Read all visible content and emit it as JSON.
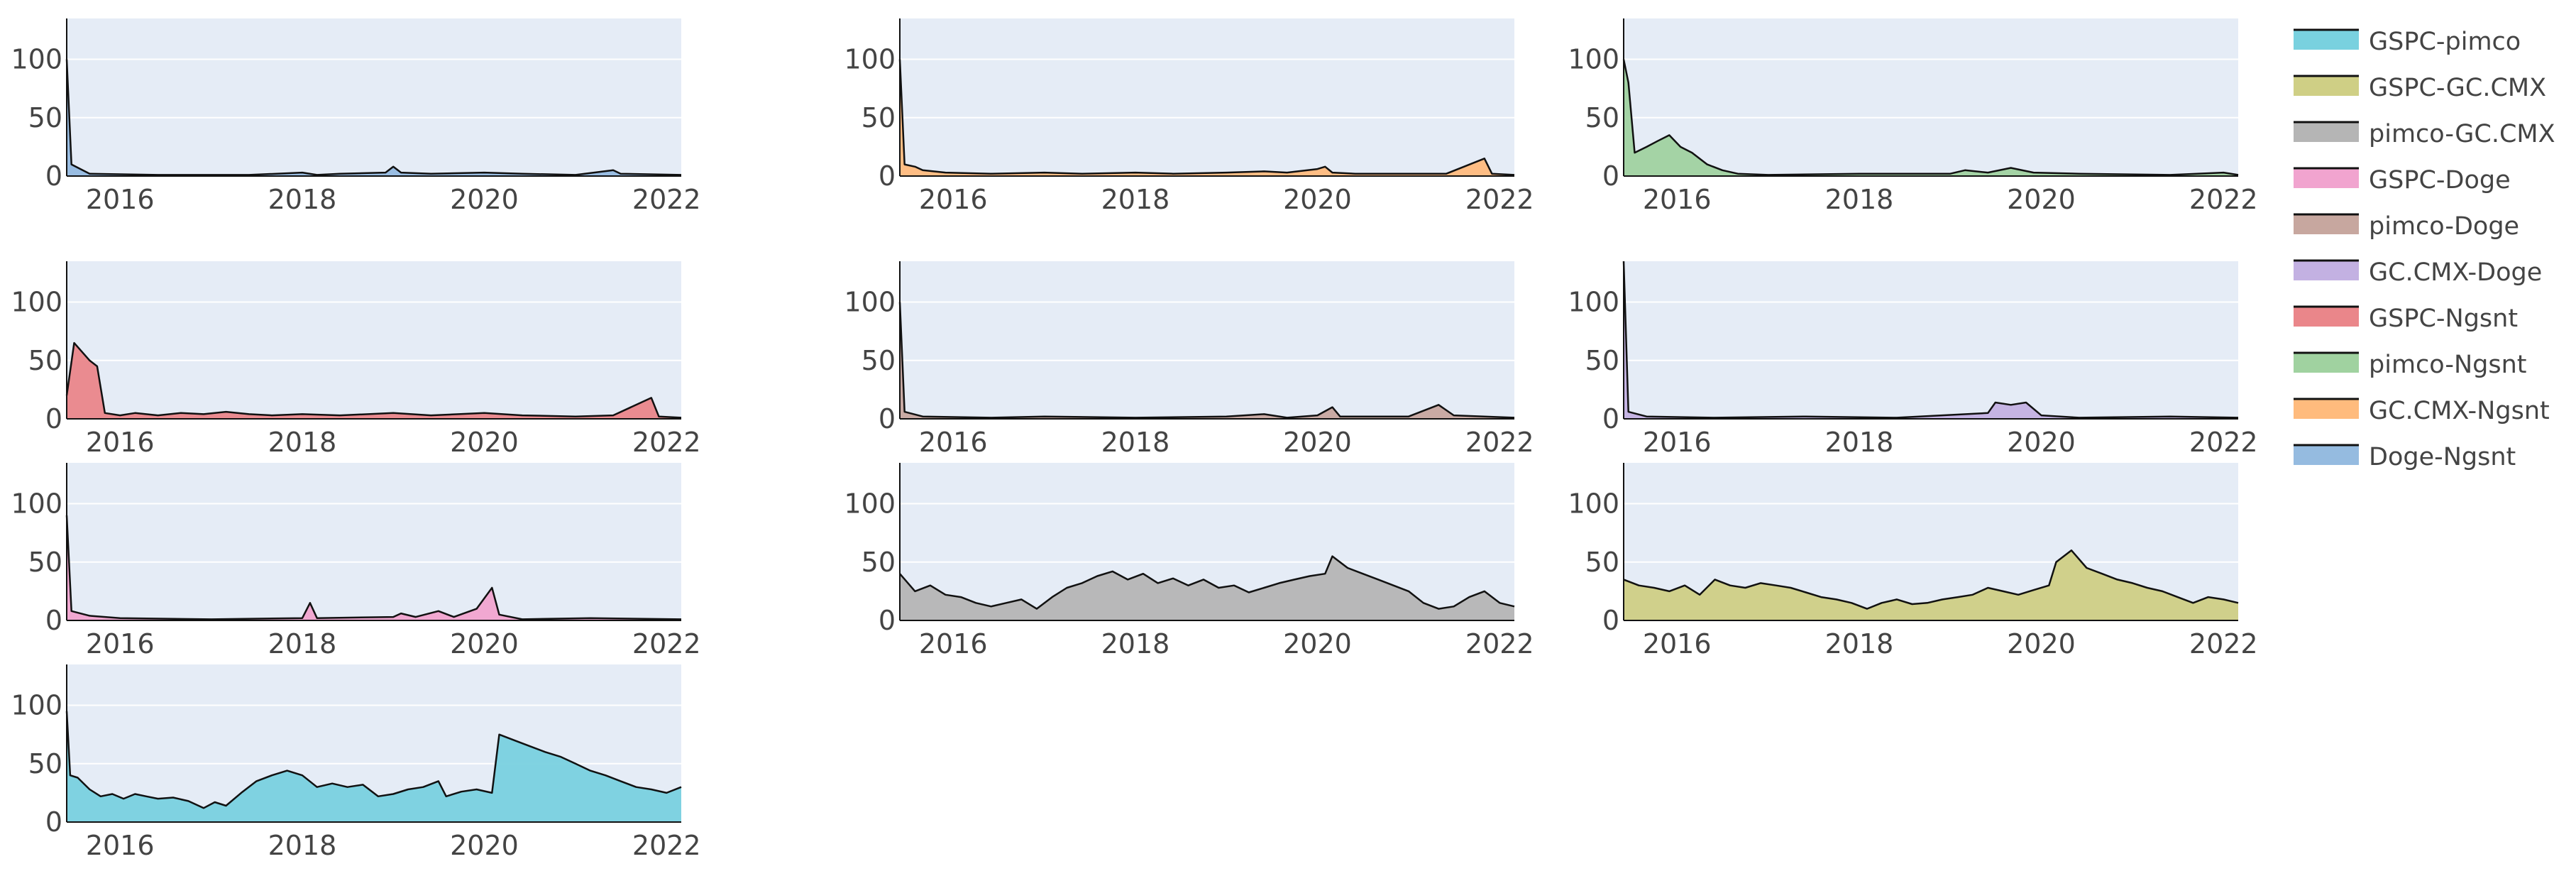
{
  "chart_data": {
    "type": "area",
    "x_range": [
      "2015-06-01",
      "2022-03-01"
    ],
    "x_ticks": [
      "2016",
      "2018",
      "2020",
      "2022"
    ],
    "y_range": [
      0,
      135
    ],
    "y_ticks": [
      0,
      50,
      100
    ],
    "grid": true,
    "legend_placement": "right",
    "panels": [
      {
        "name": "GSPC-pimco",
        "color": "#79d1df",
        "points": [
          [
            "2015-06-01",
            95
          ],
          [
            "2015-06-15",
            40
          ],
          [
            "2015-07-15",
            38
          ],
          [
            "2015-09-01",
            28
          ],
          [
            "2015-10-15",
            22
          ],
          [
            "2015-12-01",
            24
          ],
          [
            "2016-01-15",
            20
          ],
          [
            "2016-03-01",
            24
          ],
          [
            "2016-04-15",
            22
          ],
          [
            "2016-06-01",
            20
          ],
          [
            "2016-08-01",
            21
          ],
          [
            "2016-10-01",
            18
          ],
          [
            "2016-12-01",
            12
          ],
          [
            "2017-01-15",
            17
          ],
          [
            "2017-03-01",
            14
          ],
          [
            "2017-05-01",
            25
          ],
          [
            "2017-07-01",
            35
          ],
          [
            "2017-09-01",
            40
          ],
          [
            "2017-11-01",
            44
          ],
          [
            "2018-01-01",
            40
          ],
          [
            "2018-03-01",
            30
          ],
          [
            "2018-05-01",
            33
          ],
          [
            "2018-07-01",
            30
          ],
          [
            "2018-09-01",
            32
          ],
          [
            "2018-11-01",
            22
          ],
          [
            "2019-01-01",
            24
          ],
          [
            "2019-03-01",
            28
          ],
          [
            "2019-05-01",
            30
          ],
          [
            "2019-07-01",
            35
          ],
          [
            "2019-08-01",
            22
          ],
          [
            "2019-10-01",
            26
          ],
          [
            "2019-12-01",
            28
          ],
          [
            "2020-02-01",
            25
          ],
          [
            "2020-03-01",
            75
          ],
          [
            "2020-05-01",
            70
          ],
          [
            "2020-07-01",
            65
          ],
          [
            "2020-09-01",
            60
          ],
          [
            "2020-11-01",
            56
          ],
          [
            "2021-01-01",
            50
          ],
          [
            "2021-03-01",
            44
          ],
          [
            "2021-05-01",
            40
          ],
          [
            "2021-07-01",
            35
          ],
          [
            "2021-09-01",
            30
          ],
          [
            "2021-11-01",
            28
          ],
          [
            "2022-01-01",
            25
          ],
          [
            "2022-03-01",
            30
          ]
        ]
      },
      {
        "name": "GSPC-GC.CMX",
        "color": "#cfcf85",
        "points": [
          [
            "2015-06-01",
            35
          ],
          [
            "2015-08-01",
            30
          ],
          [
            "2015-10-01",
            28
          ],
          [
            "2015-12-01",
            25
          ],
          [
            "2016-02-01",
            30
          ],
          [
            "2016-04-01",
            22
          ],
          [
            "2016-06-01",
            35
          ],
          [
            "2016-08-01",
            30
          ],
          [
            "2016-10-01",
            28
          ],
          [
            "2016-12-01",
            32
          ],
          [
            "2017-02-01",
            30
          ],
          [
            "2017-04-01",
            28
          ],
          [
            "2017-06-01",
            24
          ],
          [
            "2017-08-01",
            20
          ],
          [
            "2017-10-01",
            18
          ],
          [
            "2017-12-01",
            15
          ],
          [
            "2018-02-01",
            10
          ],
          [
            "2018-04-01",
            15
          ],
          [
            "2018-06-01",
            18
          ],
          [
            "2018-08-01",
            14
          ],
          [
            "2018-10-01",
            15
          ],
          [
            "2018-12-01",
            18
          ],
          [
            "2019-02-01",
            20
          ],
          [
            "2019-04-01",
            22
          ],
          [
            "2019-06-01",
            28
          ],
          [
            "2019-08-01",
            25
          ],
          [
            "2019-10-01",
            22
          ],
          [
            "2019-12-01",
            26
          ],
          [
            "2020-02-01",
            30
          ],
          [
            "2020-03-01",
            50
          ],
          [
            "2020-05-01",
            60
          ],
          [
            "2020-07-01",
            45
          ],
          [
            "2020-09-01",
            40
          ],
          [
            "2020-11-01",
            35
          ],
          [
            "2021-01-01",
            32
          ],
          [
            "2021-03-01",
            28
          ],
          [
            "2021-05-01",
            25
          ],
          [
            "2021-07-01",
            20
          ],
          [
            "2021-09-01",
            15
          ],
          [
            "2021-11-01",
            20
          ],
          [
            "2022-01-01",
            18
          ],
          [
            "2022-03-01",
            15
          ]
        ]
      },
      {
        "name": "pimco-GC.CMX",
        "color": "#b5b5b5",
        "points": [
          [
            "2015-06-01",
            40
          ],
          [
            "2015-08-01",
            25
          ],
          [
            "2015-10-01",
            30
          ],
          [
            "2015-12-01",
            22
          ],
          [
            "2016-02-01",
            20
          ],
          [
            "2016-04-01",
            15
          ],
          [
            "2016-06-01",
            12
          ],
          [
            "2016-08-01",
            15
          ],
          [
            "2016-10-01",
            18
          ],
          [
            "2016-12-01",
            10
          ],
          [
            "2017-02-01",
            20
          ],
          [
            "2017-04-01",
            28
          ],
          [
            "2017-06-01",
            32
          ],
          [
            "2017-08-01",
            38
          ],
          [
            "2017-10-01",
            42
          ],
          [
            "2017-12-01",
            35
          ],
          [
            "2018-02-01",
            40
          ],
          [
            "2018-04-01",
            32
          ],
          [
            "2018-06-01",
            36
          ],
          [
            "2018-08-01",
            30
          ],
          [
            "2018-10-01",
            35
          ],
          [
            "2018-12-01",
            28
          ],
          [
            "2019-02-01",
            30
          ],
          [
            "2019-04-01",
            24
          ],
          [
            "2019-06-01",
            28
          ],
          [
            "2019-08-01",
            32
          ],
          [
            "2019-10-01",
            35
          ],
          [
            "2019-12-01",
            38
          ],
          [
            "2020-02-01",
            40
          ],
          [
            "2020-03-01",
            55
          ],
          [
            "2020-05-01",
            45
          ],
          [
            "2020-07-01",
            40
          ],
          [
            "2020-09-01",
            35
          ],
          [
            "2020-11-01",
            30
          ],
          [
            "2021-01-01",
            25
          ],
          [
            "2021-03-01",
            15
          ],
          [
            "2021-05-01",
            10
          ],
          [
            "2021-07-01",
            12
          ],
          [
            "2021-09-01",
            20
          ],
          [
            "2021-11-01",
            25
          ],
          [
            "2022-01-01",
            15
          ],
          [
            "2022-03-01",
            12
          ]
        ]
      },
      {
        "name": "GSPC-Doge",
        "color": "#f1a4cf",
        "points": [
          [
            "2015-06-01",
            90
          ],
          [
            "2015-06-20",
            8
          ],
          [
            "2015-09-01",
            4
          ],
          [
            "2016-01-01",
            2
          ],
          [
            "2017-01-01",
            1
          ],
          [
            "2018-01-01",
            2
          ],
          [
            "2018-02-01",
            15
          ],
          [
            "2018-03-01",
            2
          ],
          [
            "2019-01-01",
            3
          ],
          [
            "2019-02-01",
            6
          ],
          [
            "2019-04-01",
            3
          ],
          [
            "2019-07-01",
            8
          ],
          [
            "2019-09-01",
            3
          ],
          [
            "2019-12-01",
            10
          ],
          [
            "2020-02-01",
            28
          ],
          [
            "2020-03-01",
            5
          ],
          [
            "2020-06-01",
            1
          ],
          [
            "2021-03-01",
            2
          ],
          [
            "2022-03-01",
            1
          ]
        ]
      },
      {
        "name": "pimco-Doge",
        "color": "#c7a79f",
        "points": [
          [
            "2015-06-01",
            100
          ],
          [
            "2015-06-20",
            6
          ],
          [
            "2015-09-01",
            2
          ],
          [
            "2016-06-01",
            1
          ],
          [
            "2017-01-01",
            2
          ],
          [
            "2018-01-01",
            1
          ],
          [
            "2019-01-01",
            2
          ],
          [
            "2019-06-01",
            4
          ],
          [
            "2019-09-01",
            1
          ],
          [
            "2020-01-01",
            3
          ],
          [
            "2020-03-01",
            10
          ],
          [
            "2020-04-01",
            2
          ],
          [
            "2021-01-01",
            2
          ],
          [
            "2021-05-01",
            12
          ],
          [
            "2021-07-01",
            3
          ],
          [
            "2022-03-01",
            1
          ]
        ]
      },
      {
        "name": "GC.CMX-Doge",
        "color": "#c3b1e2",
        "points": [
          [
            "2015-06-01",
            135
          ],
          [
            "2015-06-20",
            6
          ],
          [
            "2015-09-01",
            2
          ],
          [
            "2016-06-01",
            1
          ],
          [
            "2017-06-01",
            2
          ],
          [
            "2018-06-01",
            1
          ],
          [
            "2019-06-01",
            5
          ],
          [
            "2019-07-01",
            14
          ],
          [
            "2019-09-01",
            12
          ],
          [
            "2019-11-01",
            14
          ],
          [
            "2020-01-01",
            3
          ],
          [
            "2020-06-01",
            1
          ],
          [
            "2021-06-01",
            2
          ],
          [
            "2022-03-01",
            1
          ]
        ]
      },
      {
        "name": "GSPC-Ngsnt",
        "color": "#ea868a",
        "points": [
          [
            "2015-06-01",
            20
          ],
          [
            "2015-07-01",
            65
          ],
          [
            "2015-09-01",
            50
          ],
          [
            "2015-10-01",
            45
          ],
          [
            "2015-11-01",
            5
          ],
          [
            "2016-01-01",
            3
          ],
          [
            "2016-03-01",
            5
          ],
          [
            "2016-06-01",
            3
          ],
          [
            "2016-09-01",
            5
          ],
          [
            "2016-12-01",
            4
          ],
          [
            "2017-03-01",
            6
          ],
          [
            "2017-06-01",
            4
          ],
          [
            "2017-09-01",
            3
          ],
          [
            "2018-01-01",
            4
          ],
          [
            "2018-06-01",
            3
          ],
          [
            "2019-01-01",
            5
          ],
          [
            "2019-06-01",
            3
          ],
          [
            "2020-01-01",
            5
          ],
          [
            "2020-06-01",
            3
          ],
          [
            "2021-01-01",
            2
          ],
          [
            "2021-06-01",
            3
          ],
          [
            "2021-11-01",
            18
          ],
          [
            "2021-12-01",
            2
          ],
          [
            "2022-03-01",
            1
          ]
        ]
      },
      {
        "name": "pimco-Ngsnt",
        "color": "#a0d2a0",
        "points": [
          [
            "2015-06-01",
            100
          ],
          [
            "2015-06-20",
            80
          ],
          [
            "2015-07-15",
            20
          ],
          [
            "2015-09-01",
            25
          ],
          [
            "2015-10-15",
            30
          ],
          [
            "2015-12-01",
            35
          ],
          [
            "2016-01-15",
            25
          ],
          [
            "2016-03-01",
            20
          ],
          [
            "2016-05-01",
            10
          ],
          [
            "2016-07-01",
            5
          ],
          [
            "2016-09-01",
            2
          ],
          [
            "2017-01-01",
            1
          ],
          [
            "2018-01-01",
            2
          ],
          [
            "2019-01-01",
            2
          ],
          [
            "2019-03-01",
            5
          ],
          [
            "2019-06-01",
            3
          ],
          [
            "2019-09-01",
            7
          ],
          [
            "2019-12-01",
            3
          ],
          [
            "2020-06-01",
            2
          ],
          [
            "2021-06-01",
            1
          ],
          [
            "2022-01-01",
            3
          ],
          [
            "2022-03-01",
            1
          ]
        ]
      },
      {
        "name": "GC.CMX-Ngsnt",
        "color": "#ffbb7d",
        "points": [
          [
            "2015-06-01",
            100
          ],
          [
            "2015-06-20",
            10
          ],
          [
            "2015-08-01",
            8
          ],
          [
            "2015-09-01",
            5
          ],
          [
            "2015-12-01",
            3
          ],
          [
            "2016-06-01",
            2
          ],
          [
            "2017-01-01",
            3
          ],
          [
            "2017-06-01",
            2
          ],
          [
            "2018-01-01",
            3
          ],
          [
            "2018-06-01",
            2
          ],
          [
            "2019-01-01",
            3
          ],
          [
            "2019-06-01",
            4
          ],
          [
            "2019-09-01",
            3
          ],
          [
            "2020-01-01",
            6
          ],
          [
            "2020-02-01",
            8
          ],
          [
            "2020-03-01",
            3
          ],
          [
            "2020-06-01",
            2
          ],
          [
            "2021-01-01",
            2
          ],
          [
            "2021-06-01",
            2
          ],
          [
            "2021-11-01",
            15
          ],
          [
            "2021-12-01",
            2
          ],
          [
            "2022-03-01",
            1
          ]
        ]
      },
      {
        "name": "Doge-Ngsnt",
        "color": "#95bbe0",
        "points": [
          [
            "2015-06-01",
            100
          ],
          [
            "2015-06-20",
            10
          ],
          [
            "2015-09-01",
            2
          ],
          [
            "2016-06-01",
            1
          ],
          [
            "2017-06-01",
            1
          ],
          [
            "2018-01-01",
            3
          ],
          [
            "2018-03-01",
            1
          ],
          [
            "2018-06-01",
            2
          ],
          [
            "2018-12-01",
            3
          ],
          [
            "2019-01-01",
            8
          ],
          [
            "2019-02-01",
            3
          ],
          [
            "2019-06-01",
            2
          ],
          [
            "2020-01-01",
            3
          ],
          [
            "2020-06-01",
            2
          ],
          [
            "2021-01-01",
            1
          ],
          [
            "2021-06-01",
            5
          ],
          [
            "2021-07-01",
            2
          ],
          [
            "2022-03-01",
            1
          ]
        ]
      }
    ]
  }
}
